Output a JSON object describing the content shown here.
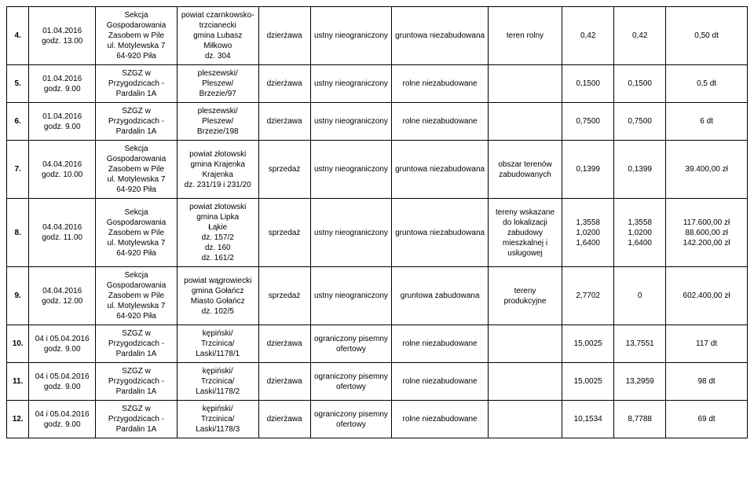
{
  "table": {
    "background": "#ffffff",
    "border_color": "#000000",
    "font_size": 10,
    "rows": [
      {
        "num": "4.",
        "date": "01.04.2016\ngodz. 13.00",
        "org": "Sekcja\nGospodarowania\nZasobem w Pile\nul. Motylewska 7\n64-920 Piła",
        "loc": "powiat czarnkowsko-\ntrzcianecki\ngmina Lubasz\nMiłkowo\ndz. 304",
        "type": "dzierżawa",
        "audit": "ustny nieograniczony",
        "land": "gruntowa niezabudowana",
        "terr": "teren rolny",
        "v1": "0,42",
        "v2": "0,42",
        "v3": "0,50 dt"
      },
      {
        "num": "5.",
        "date": "01.04.2016\ngodz. 9.00",
        "org": "SZGZ w\nPrzygodzicach -\nPardalin 1A",
        "loc": "pleszewski/\nPleszew/\nBrzezie/97",
        "type": "dzierżawa",
        "audit": "ustny nieograniczony",
        "land": "rolne niezabudowane",
        "terr": "",
        "v1": "0,1500",
        "v2": "0,1500",
        "v3": "0,5 dt"
      },
      {
        "num": "6.",
        "date": "01.04.2016\ngodz. 9.00",
        "org": "SZGZ w\nPrzygodzicach -\nPardalin 1A",
        "loc": "pleszewski/\nPleszew/\nBrzezie/198",
        "type": "dzierżawa",
        "audit": "ustny nieograniczony",
        "land": "rolne niezabudowane",
        "terr": "",
        "v1": "0,7500",
        "v2": "0,7500",
        "v3": "6 dt"
      },
      {
        "num": "7.",
        "date": "04.04.2016\ngodz. 10.00",
        "org": "Sekcja\nGospodarowania\nZasobem w Pile\nul. Motylewska 7\n64-920 Piła",
        "loc": "powiat złotowski\ngmina Krajenka\nKrajenka\ndz. 231/19 i 231/20",
        "type": "sprzedaż",
        "audit": "ustny nieograniczony",
        "land": "gruntowa niezabudowana",
        "terr": "obszar terenów\nzabudowanych",
        "v1": "0,1399",
        "v2": "0,1399",
        "v3": "39.400,00 zł"
      },
      {
        "num": "8.",
        "date": "04.04.2016\ngodz. 11.00",
        "org": "Sekcja\nGospodarowania\nZasobem w Pile\nul. Motylewska 7\n64-920 Piła",
        "loc": "powiat złotowski\ngmina Lipka\nŁąkie\ndz. 157/2\ndz. 160\ndz. 161/2",
        "type": "sprzedaż",
        "audit": "ustny nieograniczony",
        "land": "gruntowa niezabudowana",
        "terr": "tereny wskazane\ndo lokalizacji\nzabudowy\nmieszkalnej i\nusługowej",
        "v1": "1,3558\n1,0200\n1,6400",
        "v2": "1,3558\n1,0200\n1,6400",
        "v3": "117.600,00 zł\n88.600,00 zł\n142.200,00 zł"
      },
      {
        "num": "9.",
        "date": "04.04.2016\ngodz. 12.00",
        "org": "Sekcja\nGospodarowania\nZasobem w Pile\nul. Motylewska 7\n64-920 Piła",
        "loc": "powiat wągrowiecki\ngmina Gołańcz\nMiasto Gołańcz\ndz. 102/5",
        "type": "sprzedaż",
        "audit": "ustny nieograniczony",
        "land": "gruntowa zabudowana",
        "terr": "tereny\nprodukcyjne",
        "v1": "2,7702",
        "v2": "0",
        "v3": "602.400,00 zł"
      },
      {
        "num": "10.",
        "date": "04 i 05.04.2016\ngodz. 9.00",
        "org": "SZGZ w\nPrzygodzicach -\nPardalin 1A",
        "loc": "kępiński/\nTrzcinica/\nLaski/1178/1",
        "type": "dzierżawa",
        "audit": "ograniczony pisemny\nofertowy",
        "land": "rolne niezabudowane",
        "terr": "",
        "v1": "15,0025",
        "v2": "13,7551",
        "v3": "117 dt"
      },
      {
        "num": "11.",
        "date": "04 i 05.04.2016\ngodz. 9.00",
        "org": "SZGZ w\nPrzygodzicach -\nPardalin 1A",
        "loc": "kępiński/\nTrzcinica/\nLaski/1178/2",
        "type": "dzierżawa",
        "audit": "ograniczony pisemny\nofertowy",
        "land": "rolne niezabudowane",
        "terr": "",
        "v1": "15,0025",
        "v2": "13,2959",
        "v3": "98 dt"
      },
      {
        "num": "12.",
        "date": "04 i 05.04.2016\ngodz. 9.00",
        "org": "SZGZ w\nPrzygodzicach -\nPardalin 1A",
        "loc": "kępiński/\nTrzcinica/\nLaski/1178/3",
        "type": "dzierżawa",
        "audit": "ograniczony pisemny\nofertowy",
        "land": "rolne niezabudowane",
        "terr": "",
        "v1": "10,1534",
        "v2": "8,7788",
        "v3": "69 dt"
      }
    ]
  }
}
